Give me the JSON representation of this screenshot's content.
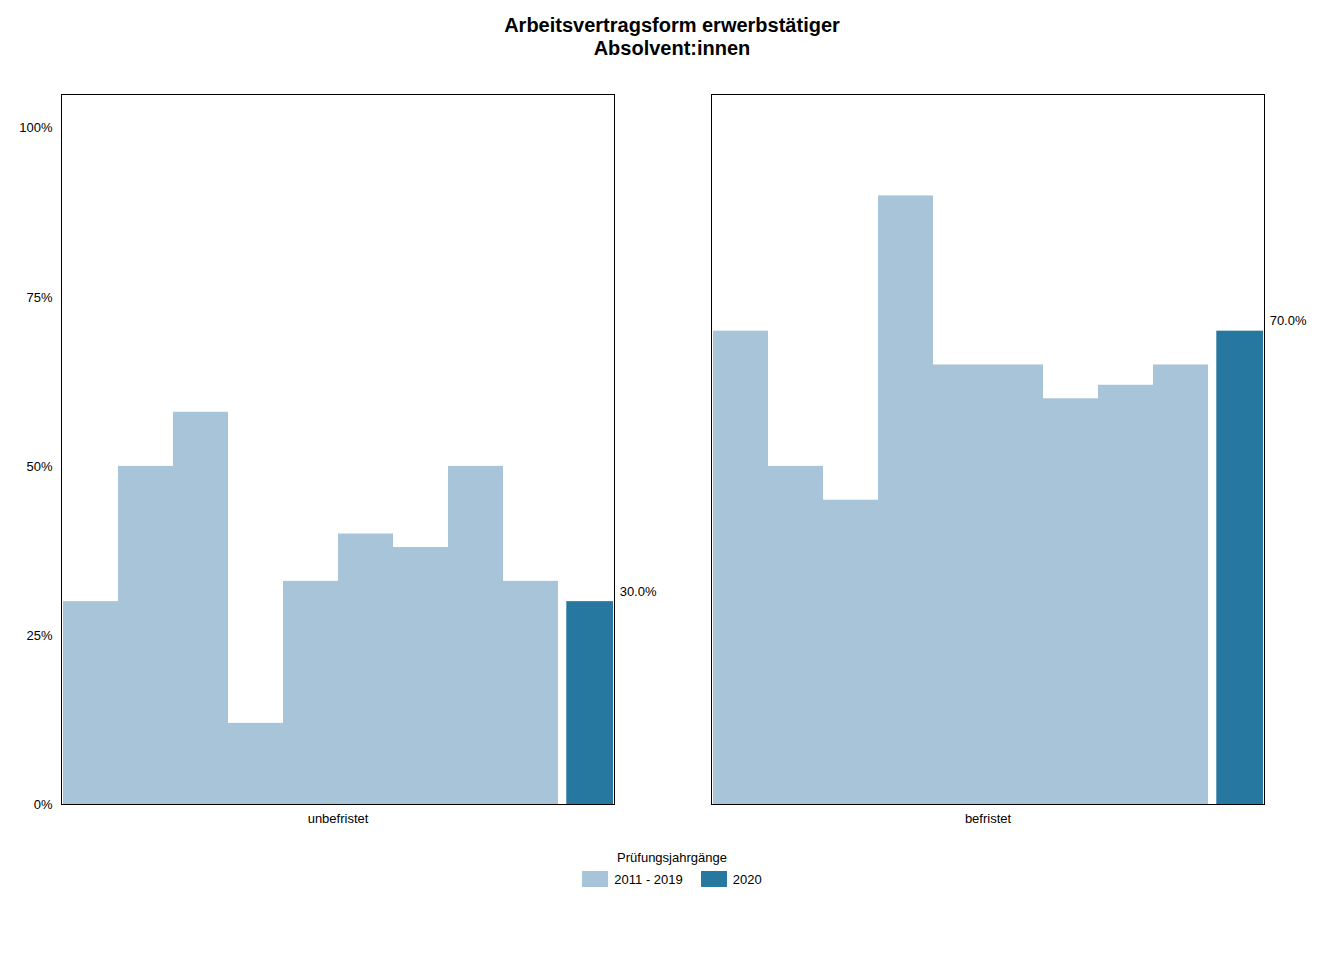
{
  "chart_data": {
    "type": "bar",
    "title": "Arbeitsvertragsform erwerbstätiger\nAbsolvent:innen",
    "categories": [
      "unbefristet",
      "befristet"
    ],
    "series": [
      {
        "name": "2011 - 2019",
        "color": "#a8c4d8",
        "values": [
          [
            30,
            50,
            58,
            12,
            33,
            40,
            38,
            50,
            33
          ],
          [
            70,
            50,
            45,
            90,
            65,
            65,
            60,
            62,
            65
          ]
        ]
      },
      {
        "name": "2020",
        "color": "#2778a0",
        "values": [
          30,
          70
        ],
        "value_labels": [
          "30.0%",
          "70.0%"
        ],
        "data_labels": true
      }
    ],
    "ylim": [
      0,
      105
    ],
    "yticks": [
      {
        "value": 0,
        "label": "0%"
      },
      {
        "value": 25,
        "label": "25%"
      },
      {
        "value": 50,
        "label": "50%"
      },
      {
        "value": 75,
        "label": "75%"
      },
      {
        "value": 100,
        "label": "100%"
      }
    ],
    "grid": false,
    "legend": "bottom",
    "legend_title": "Prüfungsjahrgänge"
  }
}
